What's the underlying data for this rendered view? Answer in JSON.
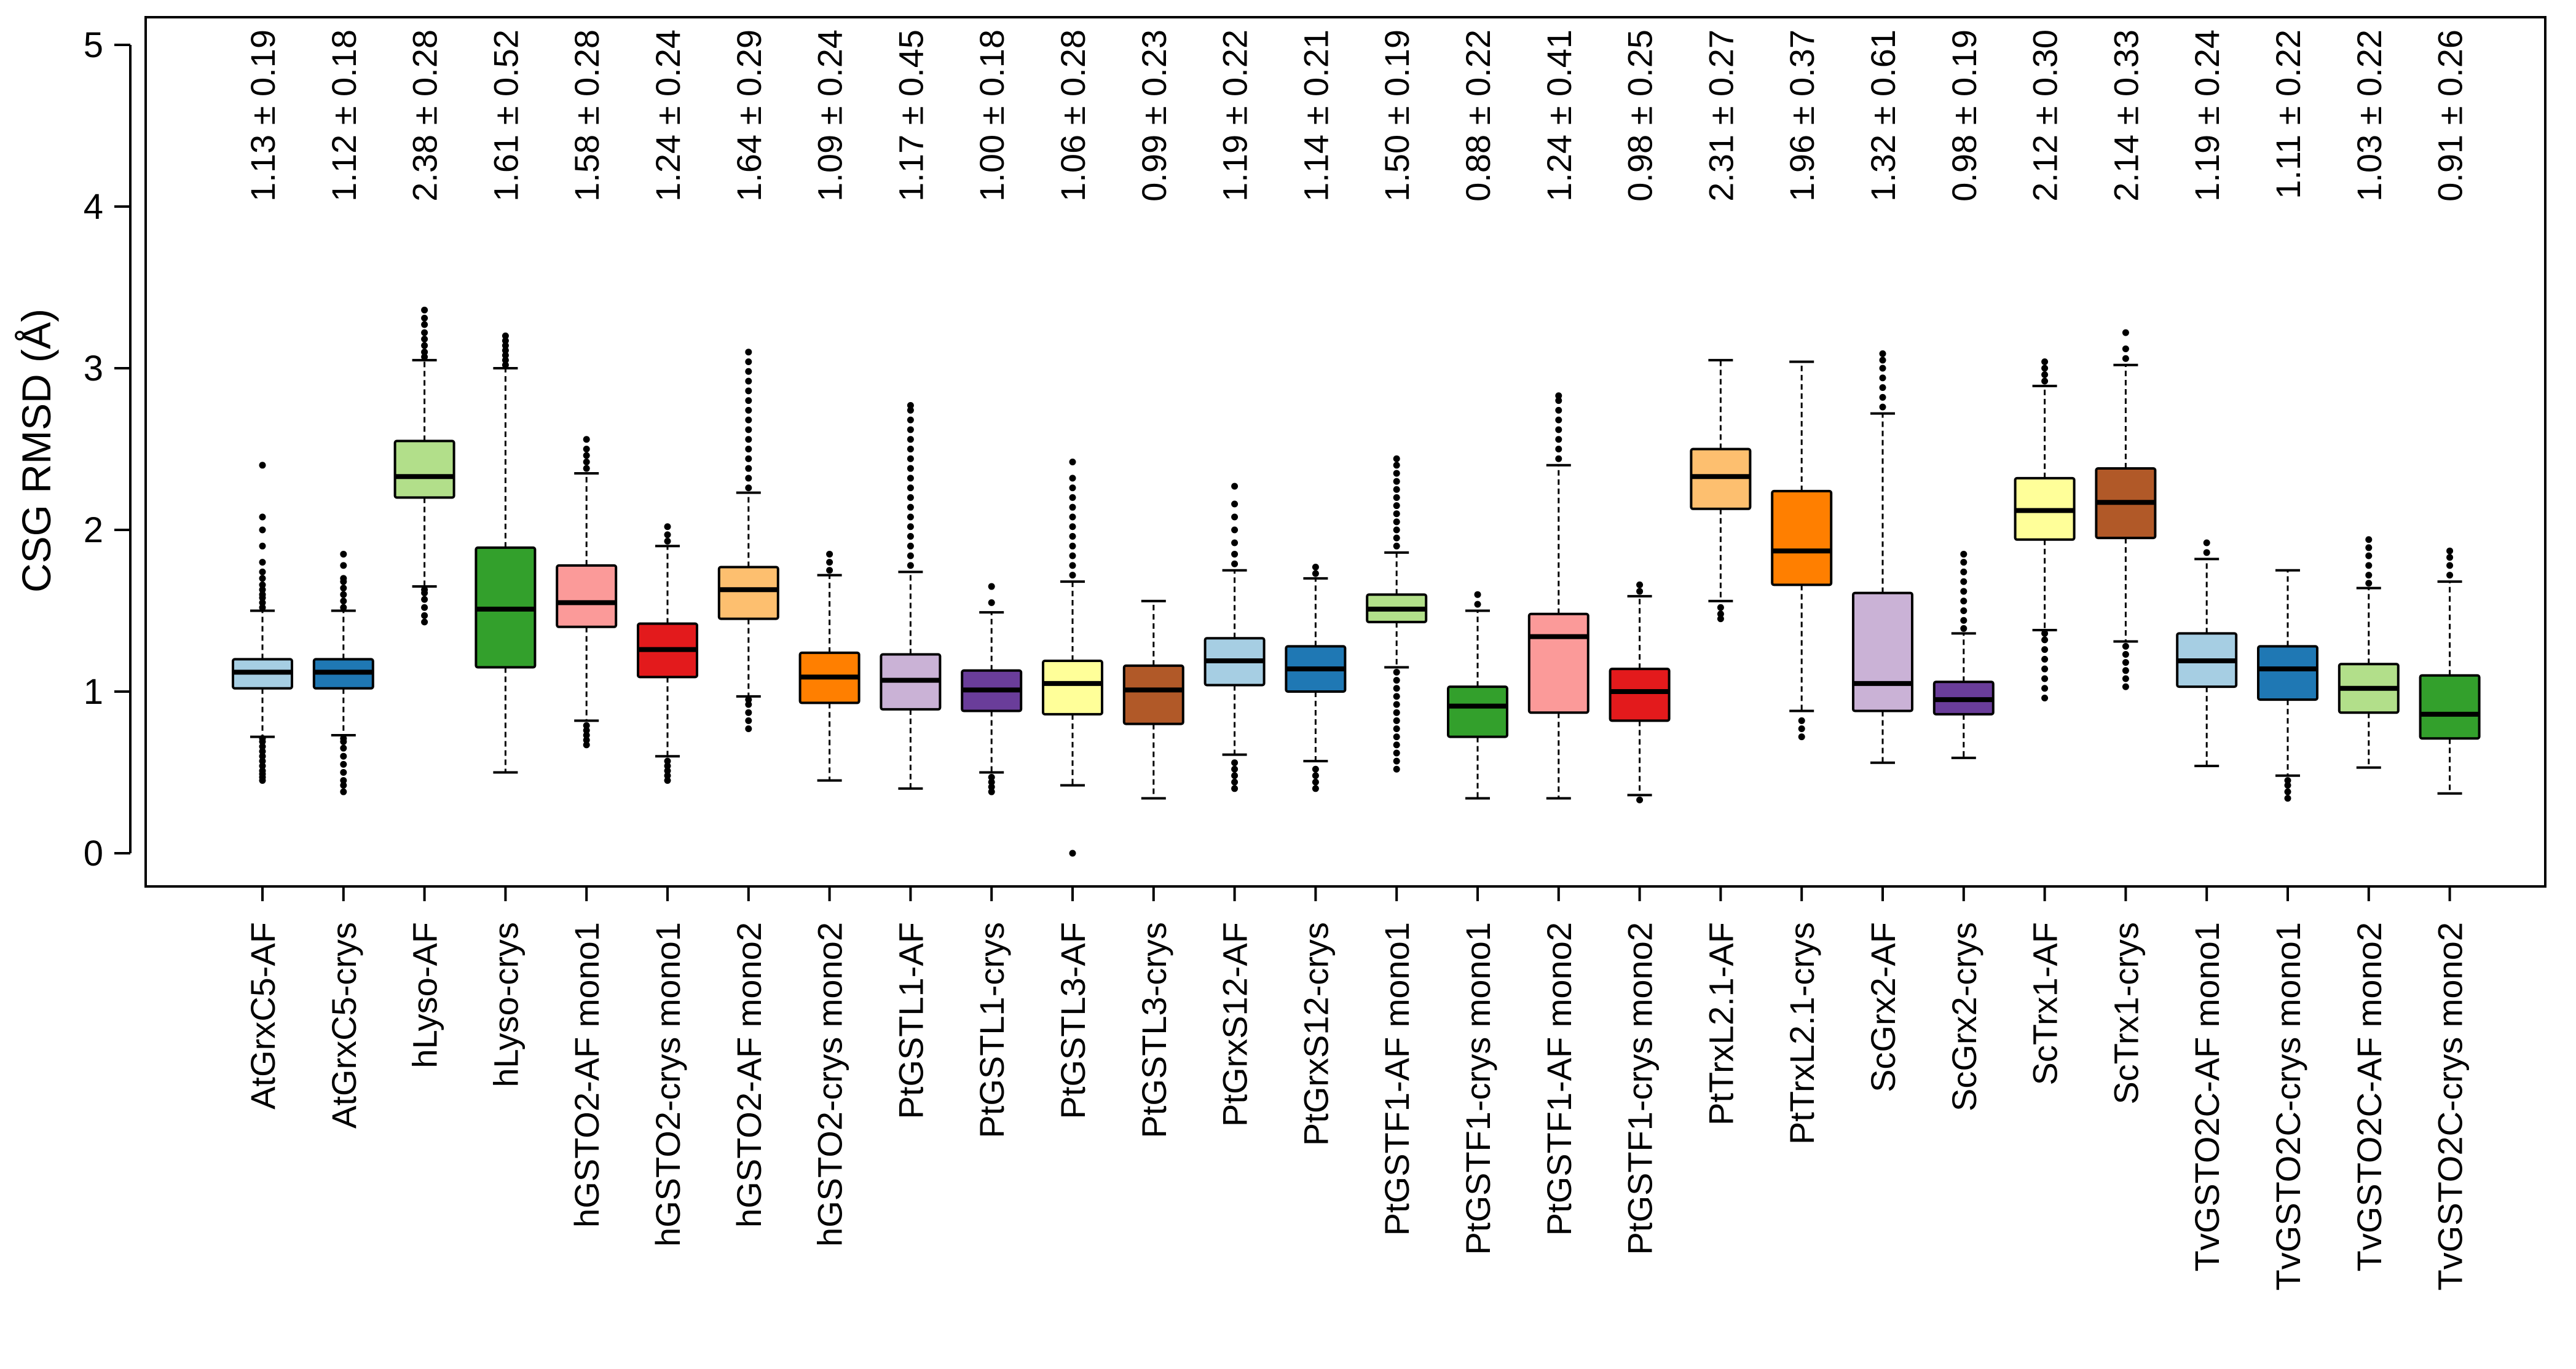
{
  "chart_data": {
    "type": "box",
    "title": "",
    "xlabel": "",
    "ylabel": "CSG RMSD (Å)",
    "ylim": [
      0,
      5
    ],
    "yticks": [
      0,
      1,
      2,
      3,
      4,
      5
    ],
    "grid": false,
    "legend": "none",
    "categories": [
      {
        "name": "AtGrxC5-AF",
        "color": "#a6cee3",
        "q1": 1.02,
        "median": 1.12,
        "q3": 1.2,
        "whisker_low": 0.72,
        "whisker_high": 1.5,
        "outliers_low": [
          0.45,
          0.47,
          0.49,
          0.51,
          0.54,
          0.57,
          0.6,
          0.63,
          0.66,
          0.69,
          0.71
        ],
        "outliers_high": [
          1.52,
          1.55,
          1.58,
          1.6,
          1.63,
          1.66,
          1.7,
          1.74,
          1.8,
          1.9,
          2.0,
          2.08,
          2.4
        ],
        "annotation": "1.13 ± 0.19"
      },
      {
        "name": "AtGrxC5-crys",
        "color": "#1f78b4",
        "q1": 1.02,
        "median": 1.12,
        "q3": 1.2,
        "whisker_low": 0.73,
        "whisker_high": 1.5,
        "outliers_low": [
          0.38,
          0.42,
          0.45,
          0.5,
          0.55,
          0.6,
          0.65,
          0.69,
          0.71
        ],
        "outliers_high": [
          1.52,
          1.56,
          1.6,
          1.64,
          1.68,
          1.7,
          1.78,
          1.85
        ],
        "annotation": "1.12 ± 0.18"
      },
      {
        "name": "hLyso-AF",
        "color": "#b2df8a",
        "q1": 2.2,
        "median": 2.33,
        "q3": 2.55,
        "whisker_low": 1.65,
        "whisker_high": 3.05,
        "outliers_low": [
          1.43,
          1.47,
          1.52,
          1.57,
          1.61,
          1.63
        ],
        "outliers_high": [
          3.07,
          3.1,
          3.14,
          3.18,
          3.22,
          3.27,
          3.31,
          3.36
        ],
        "annotation": "2.38 ± 0.28"
      },
      {
        "name": "hLyso-crys",
        "color": "#33a02c",
        "q1": 1.15,
        "median": 1.51,
        "q3": 1.89,
        "whisker_low": 0.5,
        "whisker_high": 3.0,
        "outliers_low": [],
        "outliers_high": [
          3.02,
          3.05,
          3.08,
          3.11,
          3.14,
          3.17,
          3.2
        ],
        "annotation": "1.61 ± 0.52"
      },
      {
        "name": "hGSTO2-AF mono1",
        "color": "#fb9a99",
        "q1": 1.4,
        "median": 1.55,
        "q3": 1.78,
        "whisker_low": 0.82,
        "whisker_high": 2.35,
        "outliers_low": [
          0.67,
          0.7,
          0.73,
          0.76,
          0.79
        ],
        "outliers_high": [
          2.38,
          2.42,
          2.46,
          2.5,
          2.56
        ],
        "annotation": "1.58 ± 0.28"
      },
      {
        "name": "hGSTO2-crys mono1",
        "color": "#e31a1c",
        "q1": 1.09,
        "median": 1.26,
        "q3": 1.42,
        "whisker_low": 0.6,
        "whisker_high": 1.9,
        "outliers_low": [
          0.45,
          0.48,
          0.51,
          0.54,
          0.57
        ],
        "outliers_high": [
          1.93,
          1.97,
          2.02
        ],
        "annotation": "1.24 ± 0.24"
      },
      {
        "name": "hGSTO2-AF mono2",
        "color": "#fdbf6f",
        "q1": 1.45,
        "median": 1.63,
        "q3": 1.77,
        "whisker_low": 0.97,
        "whisker_high": 2.23,
        "outliers_low": [
          0.77,
          0.82,
          0.87,
          0.92,
          0.95
        ],
        "outliers_high": [
          2.26,
          2.32,
          2.38,
          2.44,
          2.5,
          2.56,
          2.62,
          2.68,
          2.74,
          2.8,
          2.86,
          2.92,
          2.98,
          3.04,
          3.1
        ],
        "annotation": "1.64 ± 0.29"
      },
      {
        "name": "hGSTO2-crys mono2",
        "color": "#ff7f00",
        "q1": 0.93,
        "median": 1.09,
        "q3": 1.24,
        "whisker_low": 0.45,
        "whisker_high": 1.72,
        "outliers_low": [],
        "outliers_high": [
          1.75,
          1.8,
          1.85
        ],
        "annotation": "1.09 ± 0.24"
      },
      {
        "name": "PtGSTL1-AF",
        "color": "#cab2d6",
        "q1": 0.89,
        "median": 1.07,
        "q3": 1.23,
        "whisker_low": 0.4,
        "whisker_high": 1.74,
        "outliers_low": [],
        "outliers_high": [
          1.78,
          1.84,
          1.9,
          1.96,
          2.02,
          2.08,
          2.14,
          2.2,
          2.26,
          2.32,
          2.38,
          2.44,
          2.5,
          2.56,
          2.62,
          2.68,
          2.74,
          2.77
        ],
        "annotation": "1.17 ± 0.45"
      },
      {
        "name": "PtGSTL1-crys",
        "color": "#6a3d9a",
        "q1": 0.88,
        "median": 1.01,
        "q3": 1.13,
        "whisker_low": 0.5,
        "whisker_high": 1.49,
        "outliers_low": [
          0.38,
          0.41,
          0.44,
          0.47
        ],
        "outliers_high": [
          1.55,
          1.65
        ],
        "annotation": "1.00 ± 0.18"
      },
      {
        "name": "PtGSTL3-AF",
        "color": "#ffff99",
        "q1": 0.86,
        "median": 1.05,
        "q3": 1.19,
        "whisker_low": 0.42,
        "whisker_high": 1.68,
        "outliers_low": [
          0.0
        ],
        "outliers_high": [
          1.72,
          1.78,
          1.84,
          1.9,
          1.96,
          2.02,
          2.08,
          2.14,
          2.2,
          2.26,
          2.32,
          2.42
        ],
        "annotation": "1.06 ± 0.28"
      },
      {
        "name": "PtGSTL3-crys",
        "color": "#b15928",
        "q1": 0.8,
        "median": 1.01,
        "q3": 1.16,
        "whisker_low": 0.34,
        "whisker_high": 1.56,
        "outliers_low": [],
        "outliers_high": [],
        "annotation": "0.99 ± 0.23"
      },
      {
        "name": "PtGrxS12-AF",
        "color": "#a6cee3",
        "q1": 1.04,
        "median": 1.19,
        "q3": 1.33,
        "whisker_low": 0.61,
        "whisker_high": 1.75,
        "outliers_low": [
          0.4,
          0.44,
          0.48,
          0.52,
          0.56
        ],
        "outliers_high": [
          1.79,
          1.85,
          1.92,
          2.0,
          2.08,
          2.16,
          2.27
        ],
        "annotation": "1.19 ± 0.22"
      },
      {
        "name": "PtGrxS12-crys",
        "color": "#1f78b4",
        "q1": 1.0,
        "median": 1.14,
        "q3": 1.28,
        "whisker_low": 0.57,
        "whisker_high": 1.7,
        "outliers_low": [
          0.4,
          0.44,
          0.48,
          0.52
        ],
        "outliers_high": [
          1.73,
          1.77
        ],
        "annotation": "1.14 ± 0.21"
      },
      {
        "name": "PtGSTF1-AF mono1",
        "color": "#b2df8a",
        "q1": 1.43,
        "median": 1.51,
        "q3": 1.6,
        "whisker_low": 1.15,
        "whisker_high": 1.86,
        "outliers_low": [
          0.52,
          0.57,
          0.62,
          0.67,
          0.72,
          0.77,
          0.82,
          0.87,
          0.92,
          0.97,
          1.02,
          1.07,
          1.12
        ],
        "outliers_high": [
          1.9,
          1.95,
          2.0,
          2.05,
          2.1,
          2.15,
          2.2,
          2.25,
          2.3,
          2.35,
          2.4,
          2.44
        ],
        "annotation": "1.50 ± 0.19"
      },
      {
        "name": "PtGSTF1-crys mono1",
        "color": "#33a02c",
        "q1": 0.72,
        "median": 0.91,
        "q3": 1.03,
        "whisker_low": 0.34,
        "whisker_high": 1.5,
        "outliers_low": [],
        "outliers_high": [
          1.54,
          1.6
        ],
        "annotation": "0.88 ± 0.22"
      },
      {
        "name": "PtGSTF1-AF mono2",
        "color": "#fb9a99",
        "q1": 0.87,
        "median": 1.34,
        "q3": 1.48,
        "whisker_low": 0.34,
        "whisker_high": 2.4,
        "outliers_low": [],
        "outliers_high": [
          2.44,
          2.5,
          2.56,
          2.62,
          2.68,
          2.74,
          2.8,
          2.83
        ],
        "annotation": "1.24 ± 0.41"
      },
      {
        "name": "PtGSTF1-crys mono2",
        "color": "#e31a1c",
        "q1": 0.82,
        "median": 1.0,
        "q3": 1.14,
        "whisker_low": 0.36,
        "whisker_high": 1.59,
        "outliers_low": [
          0.33
        ],
        "outliers_high": [
          1.62,
          1.66
        ],
        "annotation": "0.98 ± 0.25"
      },
      {
        "name": "PtTrxL2.1-AF",
        "color": "#fdbf6f",
        "q1": 2.13,
        "median": 2.33,
        "q3": 2.5,
        "whisker_low": 1.56,
        "whisker_high": 3.05,
        "outliers_low": [
          1.45,
          1.48,
          1.52
        ],
        "outliers_high": [],
        "annotation": "2.31 ± 0.27"
      },
      {
        "name": "PtTrxL2.1-crys",
        "color": "#ff7f00",
        "q1": 1.66,
        "median": 1.87,
        "q3": 2.24,
        "whisker_low": 0.88,
        "whisker_high": 3.04,
        "outliers_low": [
          0.72,
          0.77,
          0.82
        ],
        "outliers_high": [],
        "annotation": "1.96 ± 0.37"
      },
      {
        "name": "ScGrx2-AF",
        "color": "#cab2d6",
        "q1": 0.88,
        "median": 1.05,
        "q3": 1.61,
        "whisker_low": 0.56,
        "whisker_high": 2.72,
        "outliers_low": [],
        "outliers_high": [
          2.76,
          2.82,
          2.88,
          2.94,
          3.0,
          3.05,
          3.09
        ],
        "annotation": "1.32 ± 0.61"
      },
      {
        "name": "ScGrx2-crys",
        "color": "#6a3d9a",
        "q1": 0.86,
        "median": 0.95,
        "q3": 1.06,
        "whisker_low": 0.59,
        "whisker_high": 1.36,
        "outliers_low": [],
        "outliers_high": [
          1.39,
          1.44,
          1.5,
          1.56,
          1.62,
          1.68,
          1.74,
          1.8,
          1.85
        ],
        "annotation": "0.98 ± 0.19"
      },
      {
        "name": "ScTrx1-AF",
        "color": "#ffff99",
        "q1": 1.94,
        "median": 2.12,
        "q3": 2.32,
        "whisker_low": 1.38,
        "whisker_high": 2.89,
        "outliers_low": [
          0.96,
          1.02,
          1.08,
          1.14,
          1.2,
          1.26,
          1.32,
          1.36
        ],
        "outliers_high": [
          2.92,
          2.96,
          3.0,
          3.04
        ],
        "annotation": "2.12 ± 0.30"
      },
      {
        "name": "ScTrx1-crys",
        "color": "#b15928",
        "q1": 1.95,
        "median": 2.17,
        "q3": 2.38,
        "whisker_low": 1.31,
        "whisker_high": 3.02,
        "outliers_low": [
          1.03,
          1.08,
          1.13,
          1.18,
          1.23,
          1.28
        ],
        "outliers_high": [
          3.06,
          3.12,
          3.22
        ],
        "annotation": "2.14 ± 0.33"
      },
      {
        "name": "TvGSTO2C-AF mono1",
        "color": "#a6cee3",
        "q1": 1.03,
        "median": 1.19,
        "q3": 1.36,
        "whisker_low": 0.54,
        "whisker_high": 1.82,
        "outliers_low": [],
        "outliers_high": [
          1.86,
          1.92
        ],
        "annotation": "1.19 ± 0.24"
      },
      {
        "name": "TvGSTO2C-crys mono1",
        "color": "#1f78b4",
        "q1": 0.95,
        "median": 1.14,
        "q3": 1.28,
        "whisker_low": 0.48,
        "whisker_high": 1.75,
        "outliers_low": [
          0.34,
          0.38,
          0.42,
          0.45
        ],
        "outliers_high": [],
        "annotation": "1.11 ± 0.22"
      },
      {
        "name": "TvGSTO2C-AF mono2",
        "color": "#b2df8a",
        "q1": 0.87,
        "median": 1.02,
        "q3": 1.17,
        "whisker_low": 0.53,
        "whisker_high": 1.64,
        "outliers_low": [],
        "outliers_high": [
          1.67,
          1.72,
          1.78,
          1.84,
          1.89,
          1.94
        ],
        "annotation": "1.03 ± 0.22"
      },
      {
        "name": "TvGSTO2C-crys mono2",
        "color": "#33a02c",
        "q1": 0.71,
        "median": 0.86,
        "q3": 1.1,
        "whisker_low": 0.37,
        "whisker_high": 1.68,
        "outliers_low": [],
        "outliers_high": [
          1.72,
          1.78,
          1.83,
          1.87
        ],
        "annotation": "0.91 ± 0.26"
      }
    ]
  }
}
